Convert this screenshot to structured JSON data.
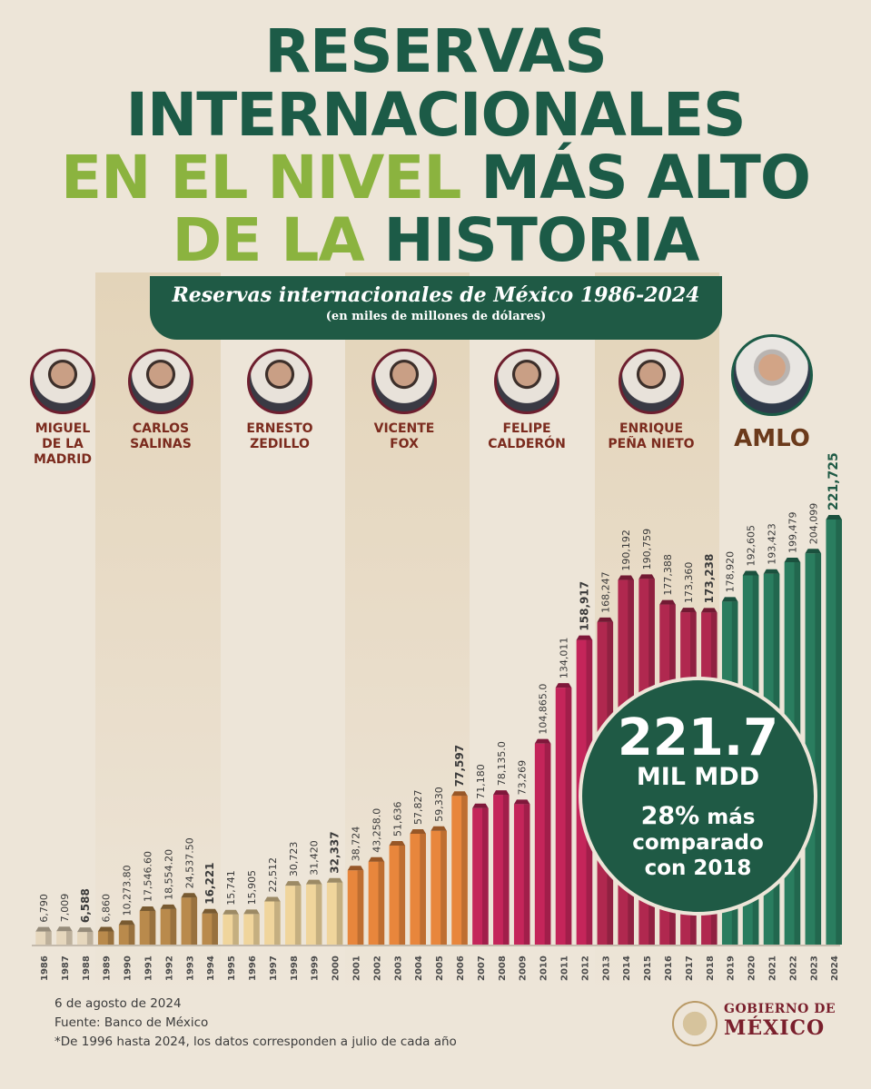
{
  "title": {
    "line1": "RESERVAS",
    "line2": "INTERNACIONALES",
    "line3_a": "EN EL NIVEL",
    "line3_b": "MÁS ALTO",
    "line4_a": "DE LA",
    "line4_b": "HISTORIA"
  },
  "subtitle": {
    "title": "Reservas internacionales de México 1986-2024",
    "units": "(en miles de millones de dólares)"
  },
  "presidents": [
    {
      "name_lines": [
        "MIGUEL",
        "DE LA",
        "MADRID"
      ]
    },
    {
      "name_lines": [
        "CARLOS",
        "SALINAS"
      ]
    },
    {
      "name_lines": [
        "ERNESTO",
        "ZEDILLO"
      ]
    },
    {
      "name_lines": [
        "VICENTE",
        "FOX"
      ]
    },
    {
      "name_lines": [
        "FELIPE",
        "CALDERÓN"
      ]
    },
    {
      "name_lines": [
        "ENRIQUE",
        "PEÑA NIETO"
      ]
    }
  ],
  "highlight_president": "AMLO",
  "callout": {
    "value": "221.7",
    "unit": "MIL MDD",
    "pct": "28%",
    "pct_text": "más",
    "line2": "comparado",
    "line3": "con 2018"
  },
  "footer": {
    "date": "6 de agosto de 2024",
    "source": "Fuente: Banco de México",
    "note": "*De 1996 hasta 2024, los datos corresponden a julio de cada año"
  },
  "logo": {
    "line1": "GOBIERNO DE",
    "line2": "MÉXICO"
  },
  "colors": {
    "title_green": "#1c5b47",
    "title_light_green": "#8bb33f",
    "period_beige": "#e6d7bd",
    "period_tan": "#f0d59c",
    "period_brown": "#b98a4c",
    "period_orange": "#e8863c",
    "period_crimson": "#c4255a",
    "period_green": "#2a7d5f"
  },
  "chart_data": {
    "type": "bar",
    "title": "Reservas internacionales de México 1986-2024",
    "ylabel": "(en miles de millones de dólares)",
    "categories": [
      "1986",
      "1987",
      "1988",
      "1989",
      "1990",
      "1991",
      "1992",
      "1993",
      "1994",
      "1995",
      "1996",
      "1997",
      "1998",
      "1999",
      "2000",
      "2001",
      "2002",
      "2003",
      "2004",
      "2005",
      "2006",
      "2007",
      "2008",
      "2009",
      "2010",
      "2011",
      "2012",
      "2013",
      "2014",
      "2015",
      "2016",
      "2017",
      "2018",
      "2019",
      "2020",
      "2021",
      "2022",
      "2023",
      "2024"
    ],
    "values": [
      6.79,
      7.009,
      6.588,
      6.86,
      10.2738,
      17.5466,
      18.5542,
      24.5375,
      16.221,
      15.741,
      15.905,
      22.512,
      30.723,
      31.42,
      32.337,
      38.724,
      43.258,
      51.636,
      57.827,
      59.33,
      77.597,
      71.18,
      78.135,
      73.269,
      104.865,
      134.011,
      158.917,
      168.247,
      190.192,
      190.759,
      177.388,
      173.36,
      173.238,
      178.92,
      192.605,
      193.423,
      199.479,
      204.099,
      221.725
    ],
    "labels": [
      "6,790",
      "7,009",
      "6,588",
      "6,860",
      "10,273.80",
      "17,546.60",
      "18,554.20",
      "24,537.50",
      "16,221",
      "15,741",
      "15,905",
      "22,512",
      "30,723",
      "31,420",
      "32,337",
      "38,724",
      "43,258.0",
      "51,636",
      "57,827",
      "59,330",
      "77,597",
      "71,180",
      "78,135.0",
      "73,269",
      "104,865.0",
      "134,011",
      "158,917",
      "168,247",
      "190,192",
      "190,759",
      "177,388",
      "173,360",
      "173,238",
      "178,920",
      "192,605",
      "193,423",
      "199,479",
      "204,099",
      "221,725"
    ],
    "bold_labels": [
      "6,588",
      "16,221",
      "32,337",
      "77,597",
      "158,917",
      "173,238",
      "221,725"
    ],
    "periods": [
      {
        "start": "1986",
        "end": "1988",
        "color": "#e6d7bd"
      },
      {
        "start": "1989",
        "end": "1994",
        "color": "#b98a4c"
      },
      {
        "start": "1995",
        "end": "2000",
        "color": "#f0d59c"
      },
      {
        "start": "2001",
        "end": "2006",
        "color": "#e8863c"
      },
      {
        "start": "2007",
        "end": "2012",
        "color": "#c4255a"
      },
      {
        "start": "2013",
        "end": "2018",
        "color": "#b0284f"
      },
      {
        "start": "2019",
        "end": "2024",
        "color": "#2a7d5f"
      }
    ],
    "ylim": [
      0,
      221.725
    ],
    "grid": false,
    "legend": "none"
  }
}
